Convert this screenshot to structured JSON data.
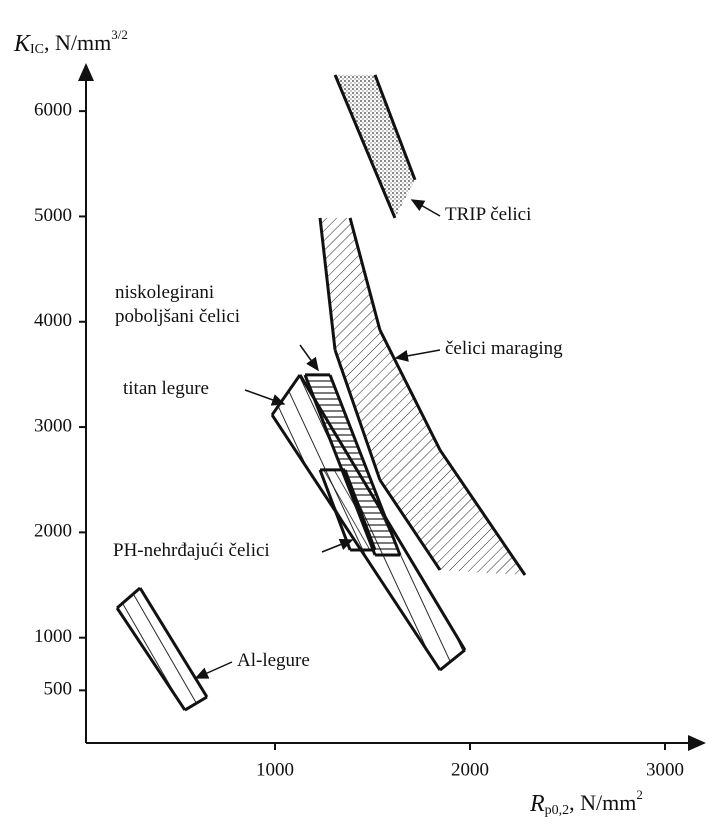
{
  "chart_data": {
    "type": "region",
    "y_label": {
      "symbol": "K",
      "subscript": "IC",
      "unit": ", N/mm",
      "superscript": "3/2"
    },
    "x_label": {
      "symbol": "R",
      "subscript": "p0,2",
      "unit": ", N/mm",
      "superscript": "2"
    },
    "xlim": [
      0,
      3200
    ],
    "ylim": [
      0,
      6400
    ],
    "xticks": [
      1000,
      2000,
      3000
    ],
    "yticks": [
      500,
      1000,
      2000,
      3000,
      4000,
      5000,
      6000
    ],
    "color": "#111111",
    "series": [
      {
        "name": "TRIP čelici",
        "x": [
          1308,
          1513,
          1718,
          1615
        ],
        "y": [
          6344,
          6344,
          5347,
          4986
        ]
      },
      {
        "name": "čelici maraging",
        "x": [
          1231,
          1308,
          1538,
          1846,
          2282,
          1846,
          1538,
          1385
        ],
        "y": [
          4986,
          3732,
          2498,
          1643,
          1595,
          2783,
          3922,
          4986
        ]
      },
      {
        "name": "niskolegirani\npoboljšani čelici",
        "x": [
          1154,
          1282,
          1641,
          1513
        ],
        "y": [
          3495,
          3495,
          1785,
          1785
        ]
      },
      {
        "name": "titan legure",
        "x": [
          985,
          1128,
          1974,
          1846
        ],
        "y": [
          3115,
          3495,
          883,
          693
        ]
      },
      {
        "name": "PH-nehrđajući čelici",
        "x": [
          1231,
          1359,
          1513,
          1385
        ],
        "y": [
          2593,
          2593,
          1833,
          1833
        ]
      },
      {
        "name": "Al-legure",
        "x": [
          190,
          308,
          651,
          538
        ],
        "y": [
          1282,
          1472,
          437,
          313
        ]
      }
    ]
  }
}
